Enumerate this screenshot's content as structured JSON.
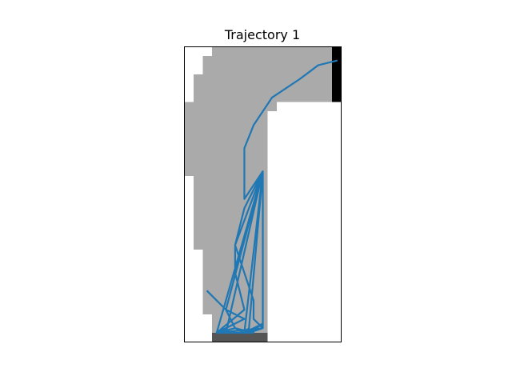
{
  "chart_data": {
    "type": "line",
    "title": "Trajectory 1",
    "xlabel": "",
    "ylabel": "",
    "xlim": [
      0,
      17
    ],
    "ylim": [
      32,
      0
    ],
    "axes_visible": false,
    "grid": false,
    "colors": {
      "free": "#ffffff",
      "corridor": "#aaaaaa",
      "start_zone": "#555555",
      "goal_zone": "#000000",
      "trajectory": "#1f77b4"
    },
    "corridor_rows": [
      {
        "y0": 0,
        "y1": 1,
        "x0": 3,
        "x1": 16
      },
      {
        "y0": 1,
        "y1": 3,
        "x0": 2,
        "x1": 16
      },
      {
        "y0": 3,
        "y1": 6,
        "x0": 1,
        "x1": 16
      },
      {
        "y0": 6,
        "y1": 7,
        "x0": 0,
        "x1": 10
      },
      {
        "y0": 7,
        "y1": 14,
        "x0": 0,
        "x1": 9
      },
      {
        "y0": 14,
        "y1": 22,
        "x0": 1,
        "x1": 9
      },
      {
        "y0": 22,
        "y1": 29,
        "x0": 2,
        "x1": 9
      },
      {
        "y0": 29,
        "y1": 31,
        "x0": 3,
        "x1": 9
      }
    ],
    "start_zone": {
      "x0": 3,
      "x1": 9,
      "y0": 31,
      "y1": 32
    },
    "goal_zone": {
      "x0": 16,
      "x1": 17,
      "y0": 0,
      "y1": 6
    },
    "series": [
      {
        "x": [
          2.5,
          4.5,
          6.5,
          3.5,
          5.5,
          7.5,
          4.0,
          3.5,
          8.5,
          3.5,
          8.5,
          8.5,
          5.5,
          7.5,
          7.5,
          8.5,
          7.0,
          8.5,
          6.5,
          7.0,
          8.5,
          4.5,
          5.5,
          6.5,
          8.5,
          6.5,
          5.5,
          5.5,
          6.5,
          3.5,
          4.5,
          8.5,
          6.5,
          6.5,
          7.5,
          9.5,
          12.5,
          14.5,
          16.5
        ],
        "y": [
          26.5,
          28.5,
          29.5,
          31.0,
          30.5,
          31.0,
          31.0,
          31.0,
          13.5,
          31.0,
          30.5,
          13.5,
          21.5,
          27.5,
          29.5,
          30.5,
          31.0,
          30.0,
          31.0,
          30.5,
          13.5,
          28.5,
          30.5,
          31.0,
          13.5,
          17.5,
          21.5,
          24.5,
          28.5,
          31.0,
          31.0,
          13.5,
          16.5,
          11.0,
          8.5,
          5.5,
          3.5,
          2.0,
          1.5
        ]
      }
    ]
  }
}
